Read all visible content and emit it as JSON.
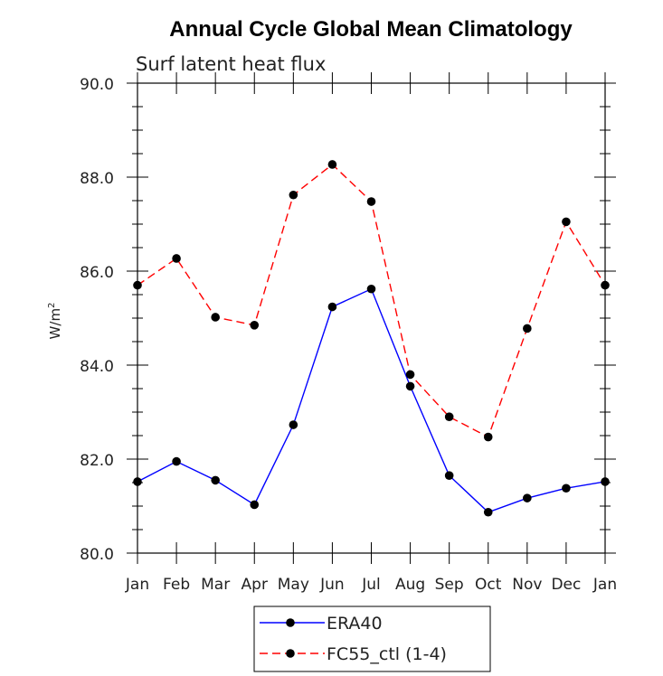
{
  "chart_data": {
    "type": "line",
    "title": "Annual Cycle Global Mean Climatology",
    "subtitle": "Surf latent heat flux",
    "xlabel": "",
    "ylabel_base": "W/m",
    "ylabel_sup": "2",
    "categories": [
      "Jan",
      "Feb",
      "Mar",
      "Apr",
      "May",
      "Jun",
      "Jul",
      "Aug",
      "Sep",
      "Oct",
      "Nov",
      "Dec",
      "Jan"
    ],
    "ylim": [
      80.0,
      90.0
    ],
    "yticks": [
      "80.0",
      "82.0",
      "84.0",
      "86.0",
      "88.0",
      "90.0"
    ],
    "series": [
      {
        "name": "ERA40",
        "color": "#0000ff",
        "dash": "solid",
        "values": [
          81.52,
          81.95,
          81.55,
          81.03,
          82.73,
          85.24,
          85.62,
          83.55,
          81.65,
          80.87,
          81.17,
          81.38,
          81.52
        ]
      },
      {
        "name": "FC55_ctl (1-4)",
        "color": "#ff0000",
        "dash": "dashed",
        "values": [
          85.7,
          86.27,
          85.02,
          84.85,
          87.62,
          88.27,
          87.48,
          83.8,
          82.9,
          82.47,
          84.78,
          87.05,
          85.7
        ]
      }
    ],
    "legend_position": "bottom-center",
    "grid": false
  }
}
